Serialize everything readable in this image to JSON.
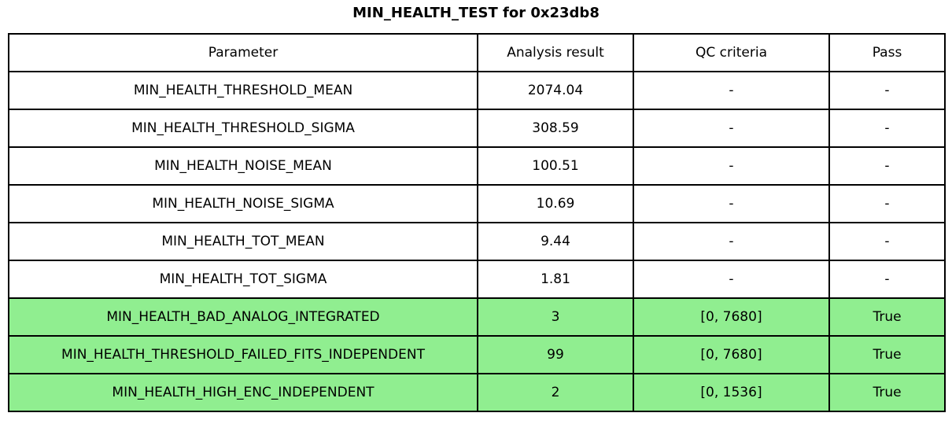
{
  "title": "MIN_HEALTH_TEST for 0x23db8",
  "colors": {
    "pass_green": "#90ee90",
    "border": "#000000",
    "background": "#ffffff"
  },
  "chart_data": {
    "type": "table",
    "title": "MIN_HEALTH_TEST for 0x23db8",
    "columns": [
      "Parameter",
      "Analysis result",
      "QC criteria",
      "Pass"
    ],
    "rows": [
      {
        "parameter": "MIN_HEALTH_THRESHOLD_MEAN",
        "analysis_result": "2074.04",
        "qc_criteria": "-",
        "pass": "-",
        "highlight": false
      },
      {
        "parameter": "MIN_HEALTH_THRESHOLD_SIGMA",
        "analysis_result": "308.59",
        "qc_criteria": "-",
        "pass": "-",
        "highlight": false
      },
      {
        "parameter": "MIN_HEALTH_NOISE_MEAN",
        "analysis_result": "100.51",
        "qc_criteria": "-",
        "pass": "-",
        "highlight": false
      },
      {
        "parameter": "MIN_HEALTH_NOISE_SIGMA",
        "analysis_result": "10.69",
        "qc_criteria": "-",
        "pass": "-",
        "highlight": false
      },
      {
        "parameter": "MIN_HEALTH_TOT_MEAN",
        "analysis_result": "9.44",
        "qc_criteria": "-",
        "pass": "-",
        "highlight": false
      },
      {
        "parameter": "MIN_HEALTH_TOT_SIGMA",
        "analysis_result": "1.81",
        "qc_criteria": "-",
        "pass": "-",
        "highlight": false
      },
      {
        "parameter": "MIN_HEALTH_BAD_ANALOG_INTEGRATED",
        "analysis_result": "3",
        "qc_criteria": "[0, 7680]",
        "pass": "True",
        "highlight": true
      },
      {
        "parameter": "MIN_HEALTH_THRESHOLD_FAILED_FITS_INDEPENDENT",
        "analysis_result": "99",
        "qc_criteria": "[0, 7680]",
        "pass": "True",
        "highlight": true
      },
      {
        "parameter": "MIN_HEALTH_HIGH_ENC_INDEPENDENT",
        "analysis_result": "2",
        "qc_criteria": "[0, 1536]",
        "pass": "True",
        "highlight": true
      }
    ]
  }
}
